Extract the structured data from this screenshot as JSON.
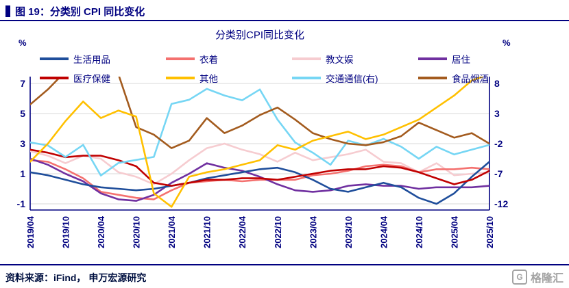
{
  "page": {
    "header_title": "图 19：分类别 CPI 同比变化",
    "footer_source": "资料来源：iFind， 申万宏源研究",
    "logo_icon_glyph": "G",
    "logo_text": "格隆汇"
  },
  "legend": {
    "items": [
      {
        "label": "生活用品",
        "color": "#1F4E9B"
      },
      {
        "label": "衣着",
        "color": "#F4716F"
      },
      {
        "label": "教文娱",
        "color": "#F6CCD0"
      },
      {
        "label": "居住",
        "color": "#7030A0"
      },
      {
        "label": "医疗保健",
        "color": "#C00000"
      },
      {
        "label": "其他",
        "color": "#FFC000"
      },
      {
        "label": "交通通信(右)",
        "color": "#76D6F4"
      },
      {
        "label": "食品烟酒",
        "color": "#A35B1E"
      }
    ]
  },
  "chart_data": {
    "type": "line",
    "title": "分类别CPI同比变化",
    "grid": true,
    "legend_position": "top",
    "left_axis": {
      "unit": "%",
      "ticks": [
        7,
        5,
        3,
        1,
        -1
      ],
      "range": [
        -1,
        7
      ]
    },
    "right_axis": {
      "unit": "%",
      "ticks": [
        8,
        3,
        -2,
        -7,
        -12
      ],
      "range": [
        -12,
        8
      ]
    },
    "x_tick_labels": [
      "2019/04",
      "2019/10",
      "2020/04",
      "2020/10",
      "2021/04",
      "2021/10",
      "2022/04",
      "2022/10",
      "2023/04",
      "2023/10",
      "2024/04",
      "2024/10",
      "2025/04",
      "2025/10"
    ],
    "x": [
      "2019/04",
      "2019/07",
      "2019/10",
      "2020/01",
      "2020/04",
      "2020/07",
      "2020/10",
      "2021/01",
      "2021/04",
      "2021/07",
      "2021/10",
      "2022/01",
      "2022/04",
      "2022/07",
      "2022/10",
      "2023/01",
      "2023/04",
      "2023/07",
      "2023/10",
      "2024/01",
      "2024/04",
      "2024/07",
      "2024/10",
      "2025/01",
      "2025/04",
      "2025/07",
      "2025/10"
    ],
    "series": [
      {
        "name": "教文娱",
        "axis": "left",
        "color": "#F6CCD0",
        "values": [
          2.5,
          2.2,
          1.7,
          2.2,
          2.0,
          1.1,
          0.8,
          0.3,
          1.0,
          1.9,
          2.7,
          3.0,
          2.6,
          2.3,
          1.8,
          2.4,
          1.9,
          2.1,
          2.3,
          2.6,
          1.8,
          1.7,
          1.1,
          1.7,
          0.9,
          1.0,
          1.1
        ]
      },
      {
        "name": "衣着",
        "axis": "left",
        "color": "#F4716F",
        "values": [
          1.9,
          1.8,
          1.3,
          0.7,
          -0.2,
          -0.4,
          -0.6,
          -0.7,
          -0.1,
          0.4,
          0.5,
          0.6,
          0.5,
          0.6,
          0.6,
          0.6,
          0.9,
          1.0,
          1.2,
          1.5,
          1.6,
          1.5,
          1.1,
          1.3,
          1.3,
          1.4,
          1.3
        ]
      },
      {
        "name": "居住",
        "axis": "left",
        "color": "#7030A0",
        "values": [
          2.0,
          1.6,
          1.0,
          0.5,
          -0.3,
          -0.7,
          -0.8,
          -0.4,
          0.4,
          1.0,
          1.7,
          1.4,
          1.2,
          0.8,
          0.3,
          -0.1,
          -0.2,
          -0.1,
          0.2,
          0.3,
          0.2,
          0.2,
          0.0,
          0.1,
          0.1,
          0.1,
          0.2
        ]
      },
      {
        "name": "生活用品",
        "axis": "left",
        "color": "#1F4E9B",
        "values": [
          1.1,
          0.9,
          0.6,
          0.3,
          0.1,
          0.0,
          -0.1,
          0.0,
          0.2,
          0.4,
          0.7,
          0.9,
          1.1,
          1.3,
          1.4,
          1.1,
          0.6,
          0.0,
          -0.2,
          0.1,
          0.4,
          0.1,
          -0.6,
          -1.0,
          -0.3,
          0.8,
          1.8
        ]
      },
      {
        "name": "医疗保健",
        "axis": "left",
        "color": "#C00000",
        "values": [
          2.6,
          2.4,
          2.1,
          2.2,
          2.2,
          1.9,
          1.5,
          0.4,
          0.2,
          0.4,
          0.6,
          0.6,
          0.7,
          0.7,
          0.6,
          0.8,
          1.0,
          1.2,
          1.3,
          1.3,
          1.5,
          1.4,
          1.1,
          0.7,
          0.3,
          0.6,
          1.2
        ]
      },
      {
        "name": "交通通信(右)",
        "axis": "right",
        "color": "#76D6F4",
        "values": [
          -1.8,
          -2.3,
          -4.2,
          -2.2,
          -7.3,
          -5.2,
          -4.7,
          -4.2,
          4.6,
          5.3,
          7.1,
          6.0,
          5.2,
          7.0,
          2.0,
          -1.8,
          -3.5,
          -5.5,
          -1.5,
          -2.3,
          -1.2,
          -2.5,
          -4.5,
          -2.5,
          -3.8,
          -3.0,
          -2.2
        ]
      },
      {
        "name": "食品烟酒",
        "axis": "left",
        "color": "#A35B1E",
        "values": [
          5.6,
          6.6,
          7.8,
          8.5,
          8.0,
          7.6,
          4.1,
          3.6,
          2.7,
          3.2,
          4.7,
          3.7,
          4.2,
          4.9,
          5.4,
          4.6,
          3.7,
          3.3,
          3.0,
          2.9,
          3.1,
          3.5,
          4.4,
          3.9,
          3.4,
          3.7,
          3.0
        ]
      },
      {
        "name": "其他",
        "axis": "left",
        "color": "#FFC000",
        "values": [
          1.8,
          3.0,
          4.5,
          5.8,
          4.7,
          5.2,
          4.8,
          -0.3,
          -1.2,
          0.8,
          1.1,
          1.3,
          1.6,
          1.9,
          2.9,
          2.6,
          3.2,
          3.5,
          3.8,
          3.3,
          3.6,
          4.1,
          4.6,
          5.4,
          6.2,
          7.2,
          7.6
        ]
      }
    ]
  }
}
